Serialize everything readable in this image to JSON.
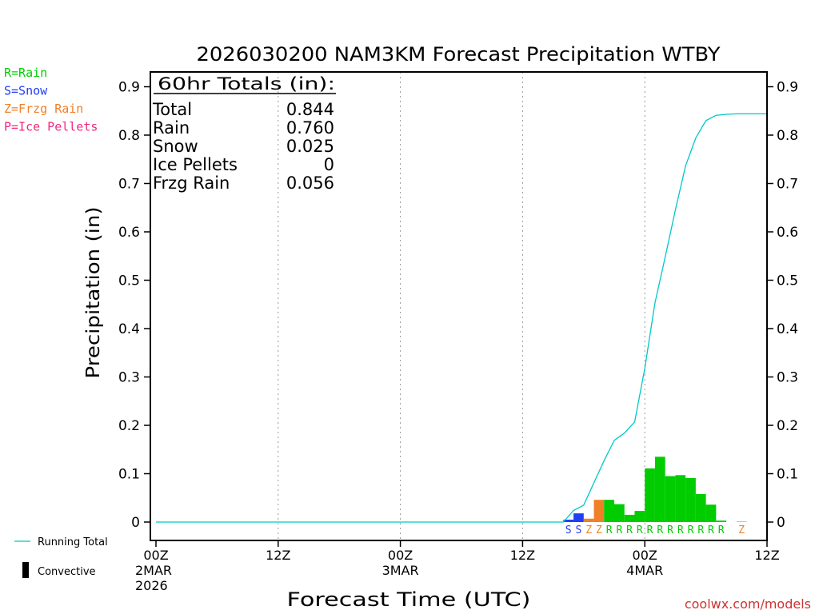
{
  "chart_data": {
    "type": "bar",
    "title": "2026030200 NAM3KM Forecast Precipitation WTBY",
    "xlabel": "Forecast Time (UTC)",
    "ylabel": "Precipitation (in)",
    "ylim": [
      -0.04,
      0.94
    ],
    "y_ticks": [
      0,
      0.1,
      0.2,
      0.3,
      0.4,
      0.5,
      0.6,
      0.7,
      0.8,
      0.9
    ],
    "y_tick_labels": [
      "0",
      "0.1",
      "0.2",
      "0.3",
      "0.4",
      "0.5",
      "0.6",
      "0.7",
      "0.8",
      "0.9"
    ],
    "xlim_hours": [
      0,
      60
    ],
    "x_ticks": [
      {
        "hour": 0,
        "lines": [
          "00Z",
          "2MAR",
          "2026"
        ]
      },
      {
        "hour": 12,
        "lines": [
          "12Z"
        ]
      },
      {
        "hour": 24,
        "lines": [
          "00Z",
          "3MAR"
        ]
      },
      {
        "hour": 36,
        "lines": [
          "12Z"
        ]
      },
      {
        "hour": 48,
        "lines": [
          "00Z",
          "4MAR"
        ]
      },
      {
        "hour": 60,
        "lines": [
          "12Z"
        ]
      }
    ],
    "type_colors": {
      "R": "#00cc00",
      "S": "#1f3ff5",
      "Z": "#f08028",
      "P": "#f0287f"
    },
    "bars": [
      {
        "hour": 40,
        "value": 0.005,
        "type": "S"
      },
      {
        "hour": 41,
        "value": 0.018,
        "type": "S"
      },
      {
        "hour": 42,
        "value": 0.007,
        "type": "Z"
      },
      {
        "hour": 43,
        "value": 0.046,
        "type": "Z"
      },
      {
        "hour": 44,
        "value": 0.046,
        "type": "R"
      },
      {
        "hour": 45,
        "value": 0.037,
        "type": "R"
      },
      {
        "hour": 46,
        "value": 0.015,
        "type": "R"
      },
      {
        "hour": 47,
        "value": 0.023,
        "type": "R"
      },
      {
        "hour": 48,
        "value": 0.111,
        "type": "R"
      },
      {
        "hour": 49,
        "value": 0.135,
        "type": "R"
      },
      {
        "hour": 50,
        "value": 0.095,
        "type": "R"
      },
      {
        "hour": 51,
        "value": 0.097,
        "type": "R"
      },
      {
        "hour": 52,
        "value": 0.091,
        "type": "R"
      },
      {
        "hour": 53,
        "value": 0.058,
        "type": "R"
      },
      {
        "hour": 54,
        "value": 0.036,
        "type": "R"
      },
      {
        "hour": 55,
        "value": 0.003,
        "type": "R"
      },
      {
        "hour": 57,
        "value": 0.001,
        "type": "Z"
      }
    ],
    "running_total": {
      "name": "Running Total",
      "color": "#00c8c8",
      "points": [
        [
          0,
          0
        ],
        [
          40,
          0
        ],
        [
          41,
          0.024
        ],
        [
          42,
          0.035
        ],
        [
          43,
          0.081
        ],
        [
          44,
          0.127
        ],
        [
          45,
          0.169
        ],
        [
          46,
          0.184
        ],
        [
          47,
          0.207
        ],
        [
          48,
          0.318
        ],
        [
          49,
          0.453
        ],
        [
          50,
          0.548
        ],
        [
          51,
          0.645
        ],
        [
          52,
          0.736
        ],
        [
          53,
          0.794
        ],
        [
          54,
          0.83
        ],
        [
          55,
          0.841
        ],
        [
          56,
          0.843
        ],
        [
          57,
          0.844
        ],
        [
          60,
          0.844
        ]
      ]
    }
  },
  "legend_types": [
    {
      "text": "R=Rain",
      "color": "#00cc00"
    },
    {
      "text": "S=Snow",
      "color": "#1f3ff5"
    },
    {
      "text": "Z=Frzg Rain",
      "color": "#f08028"
    },
    {
      "text": "P=Ice Pellets",
      "color": "#f0287f"
    }
  ],
  "totals_box": {
    "header": "60hr Totals (in):",
    "rows": [
      {
        "label": "Total",
        "value": "0.844"
      },
      {
        "label": "Rain",
        "value": "0.760"
      },
      {
        "label": "Snow",
        "value": "0.025"
      },
      {
        "label": "Ice Pellets",
        "value": "0"
      },
      {
        "label": "Frzg Rain",
        "value": "0.056"
      }
    ]
  },
  "legend_bottom": {
    "running_total": "Running Total",
    "convective": "Convective"
  },
  "footer": "coolwx.com/models"
}
